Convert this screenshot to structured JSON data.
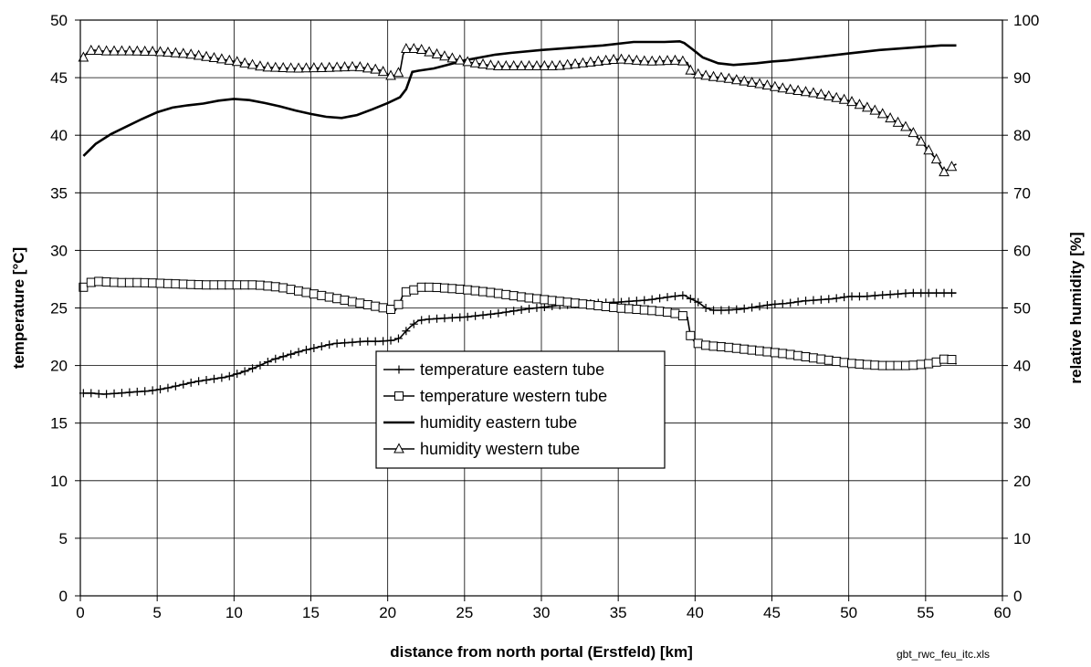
{
  "chart_data": {
    "type": "line",
    "title": "",
    "xlabel": "distance from north portal (Erstfeld) [km]",
    "ylabel": "temperature [°C]",
    "y2label": "relative humidity [%]",
    "footnote": "gbt_rwc_feu_itc.xls",
    "xlim": [
      0,
      60
    ],
    "ylim": [
      0,
      50
    ],
    "y2lim": [
      0,
      100
    ],
    "xticks": [
      "0",
      "5",
      "10",
      "15",
      "20",
      "25",
      "30",
      "35",
      "40",
      "45",
      "50",
      "55",
      "60"
    ],
    "yticks": [
      "0",
      "5",
      "10",
      "15",
      "20",
      "25",
      "30",
      "35",
      "40",
      "45",
      "50"
    ],
    "y2ticks": [
      "0",
      "10",
      "20",
      "30",
      "40",
      "50",
      "60",
      "70",
      "80",
      "90",
      "100"
    ],
    "grid": true,
    "legend_position": "center",
    "series": [
      {
        "name": "temperature eastern tube",
        "axis": "left",
        "marker": "plus",
        "x": [
          0.2,
          0.8,
          1.5,
          2.5,
          3.5,
          4.5,
          5.5,
          6.5,
          7.5,
          8.5,
          9.5,
          10.5,
          11.5,
          12.5,
          13.5,
          14.5,
          15.5,
          16.5,
          17.5,
          18.5,
          19.5,
          20.4,
          20.8,
          21.0,
          21.2,
          21.5,
          21.8,
          22.0,
          22.5,
          23.5,
          25,
          27,
          29,
          31,
          33,
          35,
          37,
          38.5,
          39.3,
          39.7,
          40.2,
          40.7,
          41.2,
          42,
          43,
          44,
          45,
          46,
          47,
          48,
          49,
          50,
          51,
          52,
          53,
          54,
          55,
          56,
          57
        ],
        "y": [
          17.6,
          17.6,
          17.5,
          17.6,
          17.7,
          17.8,
          18.0,
          18.3,
          18.6,
          18.8,
          19.0,
          19.4,
          19.9,
          20.5,
          20.9,
          21.3,
          21.6,
          21.9,
          22.0,
          22.1,
          22.1,
          22.2,
          22.4,
          22.7,
          23.0,
          23.4,
          23.7,
          23.9,
          24.0,
          24.1,
          24.2,
          24.5,
          24.9,
          25.2,
          25.4,
          25.5,
          25.7,
          26.0,
          26.1,
          25.8,
          25.5,
          25.0,
          24.8,
          24.8,
          24.9,
          25.1,
          25.3,
          25.4,
          25.6,
          25.7,
          25.8,
          26.0,
          26.0,
          26.1,
          26.2,
          26.3,
          26.3,
          26.3,
          26.3
        ]
      },
      {
        "name": "temperature western tube",
        "axis": "left",
        "marker": "square",
        "x": [
          0.2,
          0.6,
          1.2,
          2.5,
          4,
          6,
          8,
          10,
          11.5,
          13,
          14.5,
          16,
          17.5,
          19,
          20.5,
          20.9,
          21.0,
          21.2,
          21.5,
          21.8,
          22.2,
          23,
          25,
          27,
          29,
          31,
          33,
          35,
          37,
          38.5,
          39.5,
          39.7,
          40.0,
          40.5,
          41,
          42,
          44,
          46,
          48,
          50,
          52,
          54,
          55.5,
          56.3,
          56.8,
          57
        ],
        "y": [
          26.8,
          27.2,
          27.3,
          27.2,
          27.2,
          27.1,
          27.0,
          27.0,
          27.0,
          26.8,
          26.4,
          26.0,
          25.6,
          25.2,
          24.8,
          25.8,
          26.2,
          26.4,
          26.5,
          26.6,
          26.8,
          26.8,
          26.6,
          26.3,
          25.9,
          25.6,
          25.3,
          25.0,
          24.8,
          24.6,
          24.2,
          22.6,
          22.0,
          21.8,
          21.7,
          21.6,
          21.3,
          21.0,
          20.6,
          20.2,
          20.0,
          20.0,
          20.2,
          20.6,
          20.5,
          20.1
        ]
      },
      {
        "name": "humidity eastern tube",
        "axis": "right",
        "marker": "none",
        "x": [
          0.2,
          1,
          2,
          3,
          4,
          5,
          6,
          7,
          8,
          9,
          10,
          11,
          12,
          13,
          14,
          15,
          16,
          17,
          18,
          19,
          20,
          20.8,
          21.2,
          21.6,
          22,
          23,
          24,
          25,
          26,
          27,
          28,
          30,
          32,
          34,
          36,
          38,
          39,
          39.3,
          39.8,
          40.5,
          41.5,
          42.5,
          44,
          45,
          46,
          48,
          50,
          52,
          54,
          56,
          57
        ],
        "y": [
          76.4,
          78.5,
          80.2,
          81.5,
          82.8,
          84.0,
          84.8,
          85.2,
          85.5,
          86.0,
          86.3,
          86.1,
          85.6,
          85.0,
          84.3,
          83.7,
          83.2,
          83.0,
          83.5,
          84.5,
          85.6,
          86.6,
          88.0,
          91.0,
          91.2,
          91.6,
          92.3,
          93.0,
          93.5,
          94.0,
          94.3,
          94.8,
          95.2,
          95.6,
          96.2,
          96.2,
          96.3,
          96.0,
          95.0,
          93.5,
          92.5,
          92.2,
          92.5,
          92.8,
          93.0,
          93.6,
          94.2,
          94.8,
          95.2,
          95.6,
          95.6
        ]
      },
      {
        "name": "humidity western tube",
        "axis": "right",
        "marker": "triangle",
        "x": [
          0.2,
          0.5,
          0.8,
          1.5,
          3,
          5,
          7,
          9,
          10.5,
          12,
          14,
          16,
          18,
          19.5,
          20.3,
          20.8,
          21.0,
          21.2,
          21.6,
          22,
          23,
          25,
          27,
          29,
          31,
          33,
          35,
          37,
          39,
          39.5,
          39.8,
          40.2,
          41,
          42,
          44,
          46,
          48,
          50,
          51,
          52,
          53,
          54,
          55,
          55.8,
          56.2,
          56.5,
          56.8,
          57
        ],
        "y": [
          93.5,
          94.5,
          94.8,
          94.6,
          94.6,
          94.5,
          94.1,
          93.3,
          92.6,
          91.8,
          91.6,
          91.7,
          91.9,
          91.3,
          90.2,
          91.0,
          94.0,
          95.0,
          95.0,
          95.0,
          94.2,
          92.8,
          92.0,
          92.0,
          92.0,
          92.6,
          93.2,
          92.8,
          93.0,
          92.6,
          90.6,
          90.6,
          90.2,
          89.9,
          89.0,
          88.0,
          87.2,
          86.0,
          85.0,
          84.0,
          82.5,
          81.0,
          78.0,
          75.5,
          73.6,
          74.2,
          74.7,
          75.0
        ]
      }
    ]
  }
}
